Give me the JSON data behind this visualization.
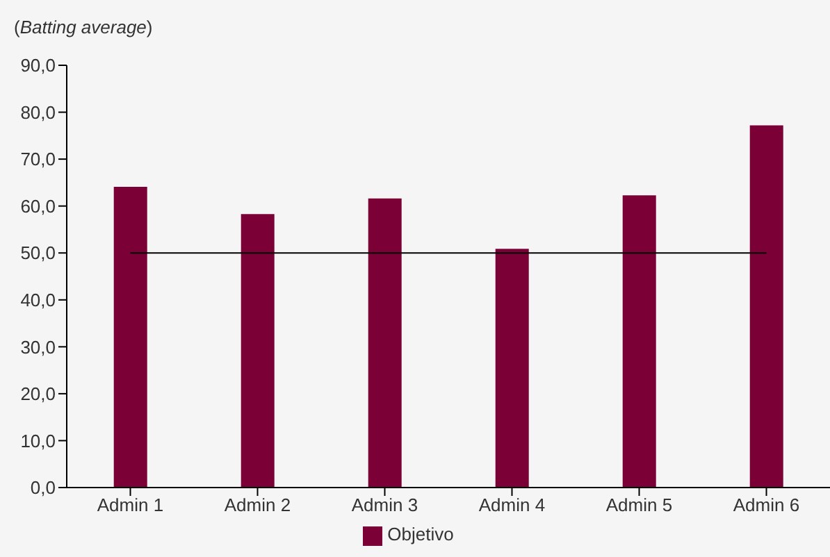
{
  "chart_data": {
    "type": "bar",
    "title": "(Batting average)",
    "categories": [
      "Admin 1",
      "Admin 2",
      "Admin 3",
      "Admin 4",
      "Admin 5",
      "Admin 6"
    ],
    "series": [
      {
        "name": "Objetivo",
        "color": "#7a0036",
        "values": [
          64.1,
          58.3,
          61.6,
          50.9,
          62.3,
          77.2
        ]
      }
    ],
    "ylim": [
      0,
      90
    ],
    "yticks": [
      {
        "value": 0,
        "label": "0,0"
      },
      {
        "value": 10,
        "label": "10,0"
      },
      {
        "value": 20,
        "label": "20,0"
      },
      {
        "value": 30,
        "label": "30,0"
      },
      {
        "value": 40,
        "label": "40,0"
      },
      {
        "value": 50,
        "label": "50,0"
      },
      {
        "value": 60,
        "label": "60,0"
      },
      {
        "value": 70,
        "label": "70,0"
      },
      {
        "value": 80,
        "label": "80,0"
      },
      {
        "value": 90,
        "label": "90,0"
      }
    ],
    "ref_lines": [
      {
        "axis": "y",
        "value": 50,
        "color": "#000000"
      }
    ],
    "grid": false,
    "legend": "bottom"
  }
}
